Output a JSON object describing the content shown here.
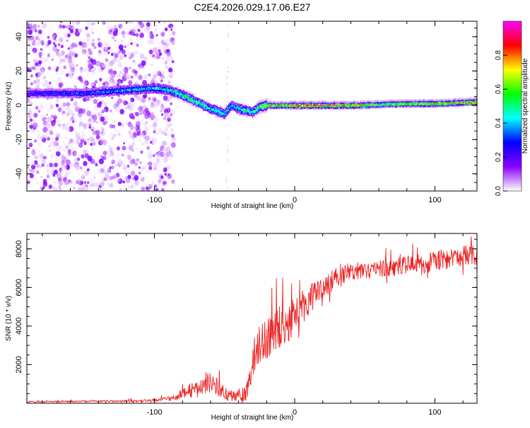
{
  "figure": {
    "title": "C2E4.2026.029.17.06.E27"
  },
  "chart_data": [
    {
      "type": "heatmap",
      "name": "spectrogram",
      "xlabel": "Height of straight line (km)",
      "ylabel": "Frequency (Hz)",
      "xlim": [
        -191,
        130
      ],
      "ylim": [
        -50,
        49
      ],
      "xticks": [
        -100,
        0,
        100
      ],
      "xtick_labels": [
        "-100",
        "0",
        "100"
      ],
      "yticks": [
        -40,
        -20,
        0,
        20,
        40
      ],
      "ytick_labels": [
        "-40",
        "-20",
        "0",
        "20",
        "40"
      ],
      "colorbar": {
        "label": "Normalized spectral amplitude",
        "range": [
          0,
          1
        ],
        "ticks": [
          0,
          0.2,
          0.4,
          0.6,
          0.8
        ],
        "tick_labels": [
          "0.0",
          "0.2",
          "0.4",
          "0.6",
          "0.8"
        ],
        "colormap": [
          "#ffffff",
          "#8b00ff",
          "#0000ff",
          "#00ffff",
          "#00ff00",
          "#ffff00",
          "#ff0000",
          "#ff00ff"
        ]
      },
      "noise_region_x": [
        -191,
        -90
      ],
      "ridge": {
        "x": [
          -191,
          -150,
          -100,
          -90,
          -80,
          -70,
          -60,
          -50,
          -45,
          -40,
          -35,
          -30,
          -25,
          -20,
          -10,
          0,
          20,
          40,
          60,
          80,
          100,
          130
        ],
        "freq": [
          7,
          7,
          10,
          9,
          6,
          2,
          -2,
          -5,
          0,
          -2,
          -3,
          -4,
          -1,
          0,
          0,
          0,
          0,
          0,
          0.5,
          1,
          1,
          2
        ],
        "amplitude": [
          0.25,
          0.3,
          0.4,
          0.45,
          0.5,
          0.5,
          0.45,
          0.45,
          0.4,
          0.45,
          0.5,
          0.45,
          0.6,
          0.7,
          0.75,
          0.85,
          0.9,
          0.75,
          0.6,
          0.65,
          0.7,
          0.8
        ]
      }
    },
    {
      "type": "line",
      "name": "snr",
      "xlabel": "Height of straight line (km)",
      "ylabel": "SNR (10 * v/v)",
      "xlim": [
        -191,
        130
      ],
      "ylim": [
        0,
        8800
      ],
      "xticks": [
        -100,
        0,
        100
      ],
      "xtick_labels": [
        "-100",
        "0",
        "100"
      ],
      "yticks": [
        2000,
        4000,
        6000,
        8000
      ],
      "ytick_labels": [
        "2000",
        "4000",
        "6000",
        "8000"
      ],
      "color": "#ee2222",
      "series": [
        {
          "name": "SNR",
          "x": [
            -191,
            -150,
            -110,
            -95,
            -85,
            -80,
            -75,
            -70,
            -65,
            -60,
            -55,
            -50,
            -45,
            -40,
            -35,
            -30,
            -28,
            -25,
            -20,
            -15,
            -10,
            -5,
            0,
            5,
            10,
            20,
            30,
            40,
            50,
            60,
            70,
            80,
            90,
            100,
            110,
            120,
            130
          ],
          "y": [
            80,
            100,
            120,
            180,
            300,
            500,
            650,
            700,
            900,
            1100,
            850,
            500,
            400,
            350,
            450,
            2000,
            2600,
            3200,
            3400,
            3700,
            4000,
            4100,
            4600,
            5000,
            5300,
            6000,
            6500,
            6800,
            6900,
            7000,
            7000,
            7200,
            7100,
            7400,
            7500,
            7600,
            7650
          ],
          "noise_amplitude": [
            40,
            40,
            60,
            90,
            150,
            250,
            350,
            400,
            450,
            550,
            450,
            350,
            300,
            350,
            400,
            800,
            1200,
            1200,
            1200,
            1200,
            1100,
            1000,
            900,
            900,
            800,
            600,
            550,
            500,
            450,
            450,
            450,
            450,
            500,
            500,
            550,
            550,
            550
          ]
        }
      ]
    }
  ]
}
